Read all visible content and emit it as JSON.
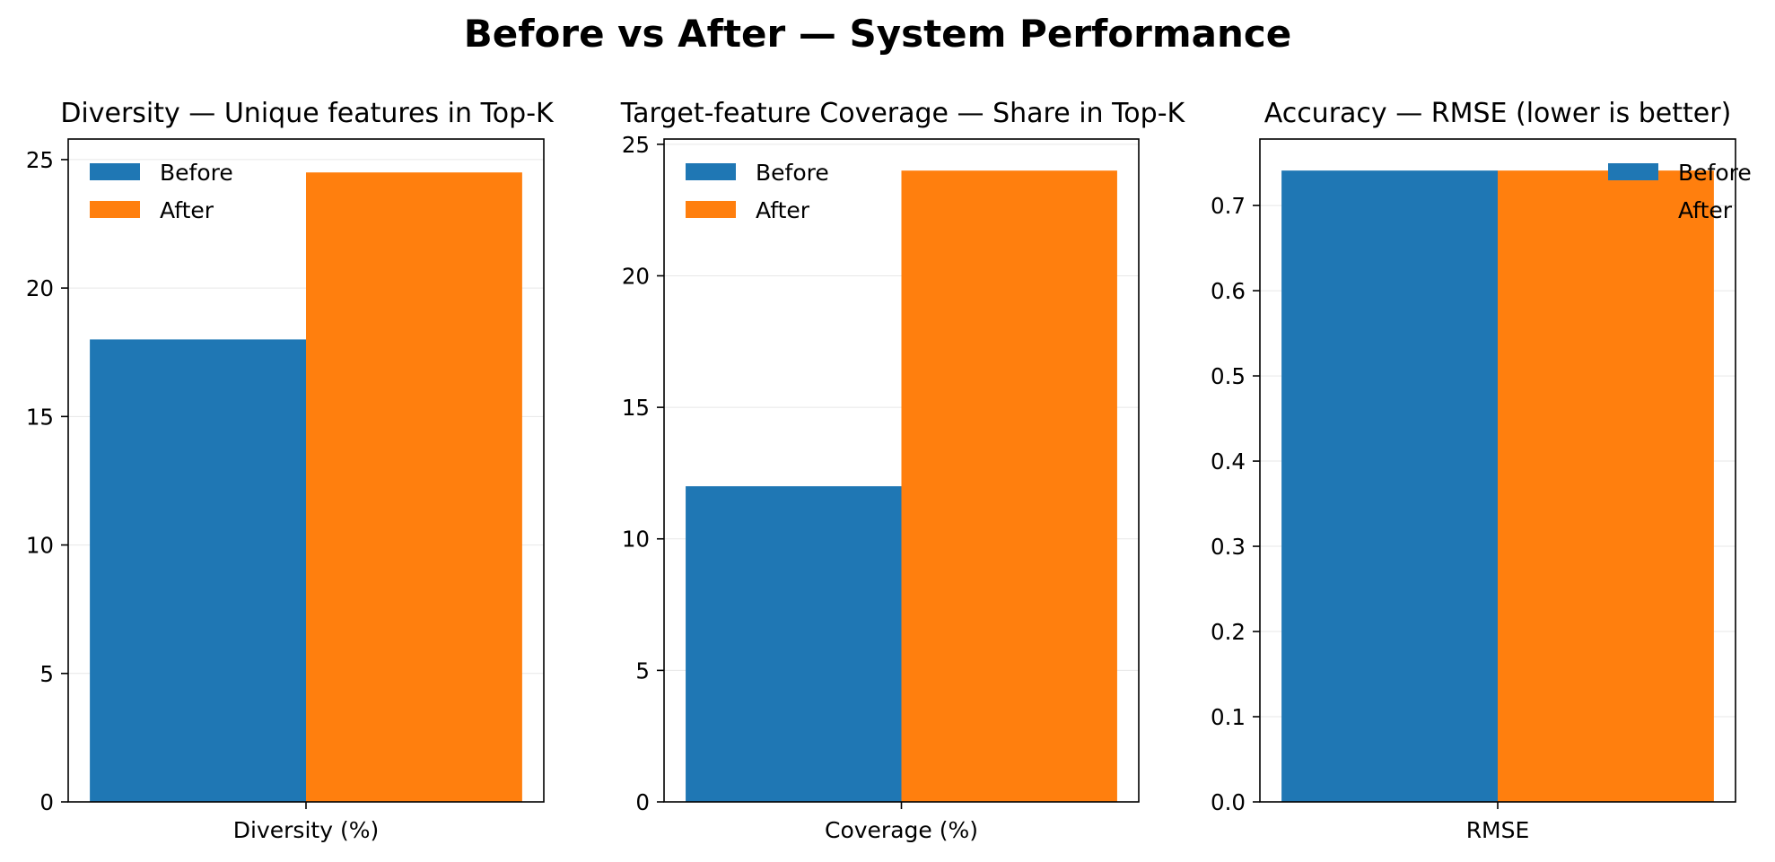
{
  "figure": {
    "title": "Before vs After — System Performance"
  },
  "colors": {
    "before": "#1f77b4",
    "after": "#ff7f0e"
  },
  "chart_data": [
    {
      "type": "bar",
      "title": "Diversity — Unique features in Top-K",
      "categories": [
        "Diversity (%)"
      ],
      "series": [
        {
          "name": "Before",
          "values": [
            18.0
          ]
        },
        {
          "name": "After",
          "values": [
            24.5
          ]
        }
      ],
      "ylim": [
        0,
        25.8
      ],
      "yticks": [
        0,
        5,
        10,
        15,
        20,
        25
      ],
      "ytick_labels": [
        "0",
        "5",
        "10",
        "15",
        "20",
        "25"
      ],
      "grid": "y",
      "legend_position": "upper-left"
    },
    {
      "type": "bar",
      "title": "Target-feature Coverage — Share in Top-K",
      "categories": [
        "Coverage (%)"
      ],
      "series": [
        {
          "name": "Before",
          "values": [
            12.0
          ]
        },
        {
          "name": "After",
          "values": [
            24.0
          ]
        }
      ],
      "ylim": [
        0,
        25.2
      ],
      "yticks": [
        0,
        5,
        10,
        15,
        20,
        25
      ],
      "ytick_labels": [
        "0",
        "5",
        "10",
        "15",
        "20",
        "25"
      ],
      "grid": "y",
      "legend_position": "upper-left"
    },
    {
      "type": "bar",
      "title": "Accuracy — RMSE (lower is better)",
      "categories": [
        "RMSE"
      ],
      "series": [
        {
          "name": "Before",
          "values": [
            0.741
          ]
        },
        {
          "name": "After",
          "values": [
            0.741
          ]
        }
      ],
      "ylim": [
        0,
        0.778
      ],
      "yticks": [
        0,
        0.1,
        0.2,
        0.3,
        0.4,
        0.5,
        0.6,
        0.7
      ],
      "ytick_labels": [
        "0.0",
        "0.1",
        "0.2",
        "0.3",
        "0.4",
        "0.5",
        "0.6",
        "0.7"
      ],
      "grid": "y",
      "legend_position": "upper-right"
    }
  ]
}
